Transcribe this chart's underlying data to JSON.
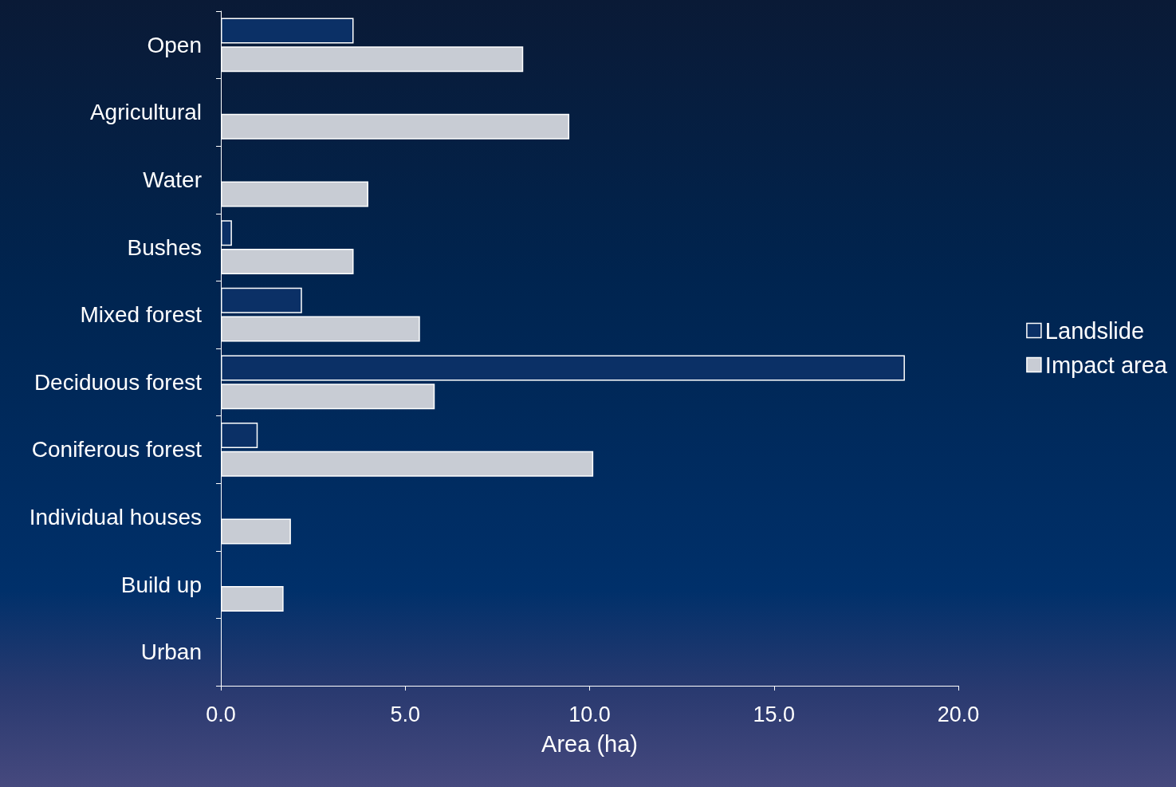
{
  "chart_data": {
    "type": "bar",
    "orientation": "horizontal",
    "xlabel": "Area (ha)",
    "categories": [
      "Open",
      "Agricultural",
      "Water",
      "Bushes",
      "Mixed forest",
      "Deciduous forest",
      "Coniferous forest",
      "Individual houses",
      "Build up",
      "Urban"
    ],
    "series": [
      {
        "name": "Landslide",
        "color": "#0b3066",
        "values": [
          3.6,
          null,
          null,
          0.3,
          2.2,
          18.55,
          1.0,
          null,
          null,
          null
        ]
      },
      {
        "name": "Impact area",
        "color": "#c8ccd4",
        "values": [
          8.2,
          9.45,
          4.0,
          3.6,
          5.4,
          5.8,
          10.1,
          1.9,
          1.7,
          null
        ]
      }
    ],
    "xlim": [
      0,
      20
    ],
    "xticks": [
      {
        "value": 0,
        "label": "0.0"
      },
      {
        "value": 5,
        "label": "5.0"
      },
      {
        "value": 10,
        "label": "10.0"
      },
      {
        "value": 15,
        "label": "15.0"
      },
      {
        "value": 20,
        "label": "20.0"
      }
    ],
    "grid": false,
    "legend": "right"
  }
}
